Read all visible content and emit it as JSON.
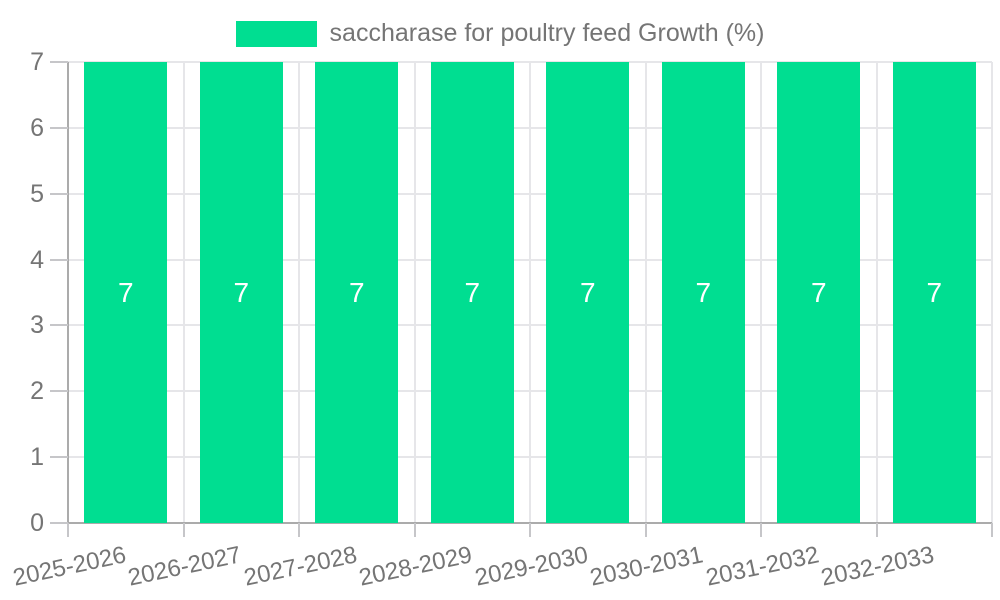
{
  "page": {
    "background": "#ffffff"
  },
  "chart_data": {
    "type": "bar",
    "title": "saccharase for poultry feed Growth (%)",
    "categories": [
      "2025-2026",
      "2026-2027",
      "2027-2028",
      "2028-2029",
      "2029-2030",
      "2030-2031",
      "2031-2032",
      "2032-2033"
    ],
    "series": [
      {
        "name": "saccharase for poultry feed Growth (%)",
        "values": [
          7,
          7,
          7,
          7,
          7,
          7,
          7,
          7
        ]
      }
    ],
    "xlabel": "",
    "ylabel": "",
    "ylim": [
      0,
      7
    ],
    "y_ticks": [
      0,
      1,
      2,
      3,
      4,
      5,
      6,
      7
    ],
    "grid": true,
    "legend_position": "top",
    "data_labels_shown": true,
    "styles": {
      "bar_color": "#00DE91",
      "grid_color": "#E6E6E9",
      "axis_color": "#ABABAB",
      "tick_color": "#C6C6C9",
      "text_color": "#757575",
      "data_label_color": "#FFFFFF"
    }
  }
}
